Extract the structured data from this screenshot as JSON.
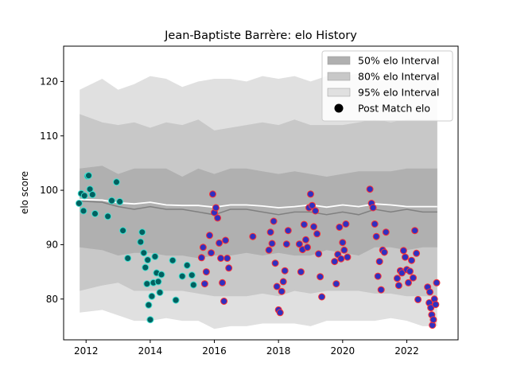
{
  "chart_data": {
    "type": "scatter",
    "title": "Jean-Baptiste Barrère: elo History",
    "xlabel": "",
    "ylabel": "elo score",
    "xlim": [
      2011.3,
      2023.6
    ],
    "ylim": [
      72.5,
      126.5
    ],
    "x_ticks": [
      2012,
      2014,
      2016,
      2018,
      2020,
      2022
    ],
    "x_tick_labels": [
      "2012",
      "2014",
      "2016",
      "2018",
      "2020",
      "2022"
    ],
    "y_ticks": [
      80,
      90,
      100,
      110,
      120
    ],
    "y_tick_labels": [
      "80",
      "90",
      "100",
      "110",
      "120"
    ],
    "grid": false,
    "legend_placement": "top-right",
    "legend": [
      {
        "label": "50% elo Interval",
        "color": "#b0b0b0",
        "kind": "patch"
      },
      {
        "label": "80% elo Interval",
        "color": "#c8c8c8",
        "kind": "patch"
      },
      {
        "label": "95% elo Interval",
        "color": "#e0e0e0",
        "kind": "patch"
      },
      {
        "label": "Post Match elo",
        "color": "#000000",
        "kind": "marker"
      }
    ],
    "bands": {
      "x": [
        2011.8,
        2012.5,
        2013.0,
        2013.5,
        2014.0,
        2014.5,
        2015.0,
        2015.5,
        2016.0,
        2016.5,
        2017.0,
        2017.5,
        2018.0,
        2018.5,
        2019.0,
        2019.5,
        2020.0,
        2020.5,
        2021.0,
        2021.5,
        2022.0,
        2022.5,
        2022.95
      ],
      "q95_upper": [
        118.5,
        120.5,
        118.5,
        119.5,
        121,
        120.5,
        119,
        120,
        120.5,
        120.5,
        120,
        121,
        120.5,
        121,
        120,
        121,
        121,
        121.5,
        120,
        120.5,
        121.5,
        121.5,
        121
      ],
      "q80_upper": [
        114,
        112.5,
        112,
        112.5,
        111.5,
        112.5,
        112,
        113,
        111,
        111.5,
        112,
        112.5,
        112,
        113,
        112,
        112,
        112,
        112.5,
        113,
        112.5,
        113,
        113,
        113
      ],
      "q50_upper": [
        104,
        104.5,
        103,
        104,
        104,
        104,
        102.5,
        104,
        103,
        104,
        104,
        103.5,
        103,
        103.5,
        103,
        102.5,
        103,
        103.5,
        103.5,
        103.5,
        104,
        104,
        104
      ],
      "median": [
        98,
        97.8,
        97,
        96.5,
        97,
        96.5,
        96.5,
        96,
        95.5,
        96.5,
        96.5,
        96,
        95.5,
        96,
        96,
        95.5,
        96,
        95.5,
        96.5,
        96,
        96.5,
        96,
        96
      ],
      "elo_line": [
        98.3,
        98.2,
        97.7,
        97.5,
        97.8,
        97.3,
        97.2,
        97.2,
        96.9,
        97.3,
        97.3,
        97.1,
        96.8,
        97,
        97.3,
        96.9,
        97.3,
        97,
        97.5,
        97.3,
        97,
        97,
        97
      ],
      "q50_lower": [
        89.5,
        89,
        88,
        88.5,
        88.5,
        88,
        88,
        87.5,
        88,
        88,
        88.5,
        88,
        88.5,
        88,
        88,
        89,
        88.5,
        88,
        89.5,
        89.5,
        89,
        89.5,
        89.5
      ],
      "q80_lower": [
        81.5,
        82.5,
        83,
        81.5,
        81.5,
        81.5,
        81.5,
        81,
        80.5,
        80.5,
        80.5,
        81,
        80.5,
        81.5,
        81,
        81.5,
        81.5,
        81.5,
        81,
        81,
        80.5,
        80.5,
        80.5
      ],
      "q95_lower": [
        77.5,
        78,
        77,
        76,
        76,
        76.5,
        76,
        76,
        74.5,
        75,
        75,
        75.5,
        75.5,
        75.5,
        75,
        76,
        76,
        76,
        76,
        76.5,
        76,
        75,
        75
      ]
    },
    "series": [
      {
        "name": "Post Match elo",
        "fill": "#006060",
        "edge": "#40e0d0",
        "x": [
          2011.78,
          2011.85,
          2011.92,
          2011.95,
          2012.05,
          2012.08,
          2012.12,
          2012.2,
          2012.28,
          2012.68,
          2012.8,
          2012.95,
          2013.05,
          2013.15,
          2013.3,
          2013.7,
          2013.75,
          2013.8,
          2013.85,
          2013.9,
          2013.92,
          2013.95,
          2014.0,
          2014.05,
          2014.1,
          2014.15,
          2014.2,
          2014.25,
          2014.3,
          2014.35,
          2014.7,
          2014.8,
          2015.0,
          2015.15,
          2015.3,
          2015.35
        ],
        "y": [
          97.6,
          99.4,
          96.2,
          99.0,
          102.6,
          102.7,
          100.2,
          99.2,
          95.7,
          95.2,
          98.1,
          101.5,
          97.9,
          92.6,
          87.5,
          90.5,
          92.3,
          88.5,
          85.8,
          82.8,
          87.2,
          78.9,
          76.2,
          80.5,
          83.0,
          87.8,
          84.8,
          83.2,
          81.2,
          84.5,
          87.1,
          79.8,
          84.2,
          86.2,
          84.4,
          82.6
        ]
      },
      {
        "name": "Post Match elo",
        "fill": "#3030c0",
        "edge": "#ff3030",
        "x": [
          2015.6,
          2015.65,
          2015.7,
          2015.75,
          2015.85,
          2015.9,
          2015.95,
          2016.0,
          2016.05,
          2016.1,
          2016.15,
          2016.2,
          2016.25,
          2016.3,
          2016.35,
          2016.4,
          2016.45,
          2017.2,
          2017.7,
          2017.75,
          2017.8,
          2017.85,
          2017.9,
          2017.95,
          2018.0,
          2018.05,
          2018.1,
          2018.15,
          2018.2,
          2018.25,
          2018.3,
          2018.65,
          2018.7,
          2018.75,
          2018.8,
          2018.85,
          2018.9,
          2018.95,
          2019.0,
          2019.05,
          2019.1,
          2019.15,
          2019.2,
          2019.25,
          2019.3,
          2019.35,
          2019.75,
          2019.8,
          2019.85,
          2019.9,
          2019.95,
          2020.0,
          2020.05,
          2020.1,
          2020.15,
          2020.85,
          2020.9,
          2020.95,
          2021.0,
          2021.05,
          2021.1,
          2021.15,
          2021.2,
          2021.25,
          2021.3,
          2021.35,
          2021.7,
          2021.75,
          2021.8,
          2021.85,
          2021.9,
          2021.95,
          2022.0,
          2022.05,
          2022.1,
          2022.15,
          2022.2,
          2022.25,
          2022.3,
          2022.35,
          2022.65,
          2022.7,
          2022.72,
          2022.75,
          2022.78,
          2022.8,
          2022.83,
          2022.86,
          2022.9,
          2022.93
        ],
        "y": [
          87.6,
          89.5,
          82.8,
          85.0,
          91.7,
          88.5,
          99.3,
          95.9,
          96.8,
          94.9,
          90.3,
          87.5,
          83.0,
          79.6,
          90.8,
          87.5,
          85.7,
          91.5,
          89.0,
          92.3,
          90.2,
          94.3,
          86.6,
          82.3,
          78.0,
          77.5,
          81.4,
          83.2,
          85.2,
          90.1,
          92.6,
          90.1,
          85.0,
          89.1,
          93.7,
          90.9,
          89.5,
          96.8,
          99.3,
          97.2,
          93.3,
          96.2,
          92.0,
          88.3,
          84.1,
          80.4,
          86.9,
          82.8,
          88.2,
          93.2,
          87.4,
          90.4,
          89.0,
          93.8,
          87.7,
          100.2,
          97.6,
          96.8,
          93.8,
          91.5,
          84.2,
          86.9,
          81.7,
          89.0,
          88.6,
          92.3,
          83.8,
          82.5,
          85.2,
          84.8,
          88.9,
          87.7,
          85.4,
          83.0,
          85.1,
          87.1,
          83.9,
          92.6,
          88.4,
          79.9,
          82.2,
          79.3,
          81.3,
          78.4,
          77.1,
          75.2,
          76.2,
          80.0,
          79.0,
          83.0
        ]
      }
    ]
  }
}
